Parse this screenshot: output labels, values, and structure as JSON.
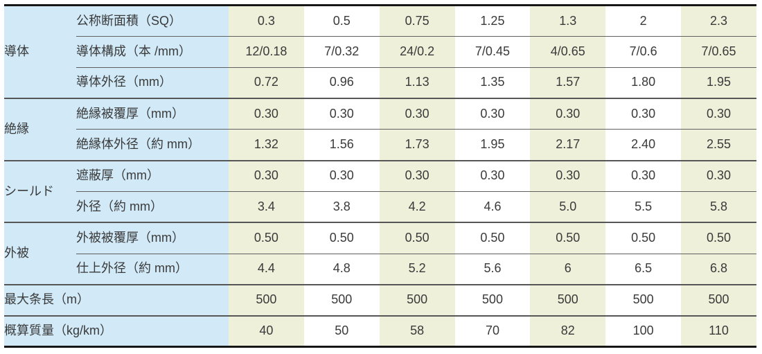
{
  "table": {
    "title": "cable-specification-table",
    "colors": {
      "label_bg": "#d2eaf8",
      "stripe_bg": "#eef0da",
      "plain_bg": "#ffffff",
      "rule": "#5f5f5f",
      "frame": "#161616",
      "text": "#3a3a3a"
    },
    "groups": [
      {
        "category": "導体",
        "rows": [
          {
            "label": "公称断面積（SQ）",
            "values": [
              "0.3",
              "0.5",
              "0.75",
              "1.25",
              "1.3",
              "2",
              "2.3"
            ]
          },
          {
            "label": "導体構成（本 /mm）",
            "values": [
              "12/0.18",
              "7/0.32",
              "24/0.2",
              "7/0.45",
              "4/0.65",
              "7/0.6",
              "7/0.65"
            ]
          },
          {
            "label": "導体外径（mm）",
            "values": [
              "0.72",
              "0.96",
              "1.13",
              "1.35",
              "1.57",
              "1.80",
              "1.95"
            ]
          }
        ]
      },
      {
        "category": "絶縁",
        "rows": [
          {
            "label": "絶縁被覆厚（mm）",
            "values": [
              "0.30",
              "0.30",
              "0.30",
              "0.30",
              "0.30",
              "0.30",
              "0.30"
            ]
          },
          {
            "label": "絶縁体外径（約 mm）",
            "values": [
              "1.32",
              "1.56",
              "1.73",
              "1.95",
              "2.17",
              "2.40",
              "2.55"
            ]
          }
        ]
      },
      {
        "category": "シールド",
        "rows": [
          {
            "label": "遮蔽厚（mm）",
            "values": [
              "0.30",
              "0.30",
              "0.30",
              "0.30",
              "0.30",
              "0.30",
              "0.30"
            ]
          },
          {
            "label": "外径（約 mm）",
            "values": [
              "3.4",
              "3.8",
              "4.2",
              "4.6",
              "5.0",
              "5.5",
              "5.8"
            ]
          }
        ]
      },
      {
        "category": "外被",
        "rows": [
          {
            "label": "外被被覆厚（mm）",
            "values": [
              "0.50",
              "0.50",
              "0.50",
              "0.50",
              "0.50",
              "0.50",
              "0.50"
            ]
          },
          {
            "label": "仕上外径（約 mm）",
            "values": [
              "4.4",
              "4.8",
              "5.2",
              "5.6",
              "6",
              "6.5",
              "6.8"
            ]
          }
        ]
      }
    ],
    "summary_rows": [
      {
        "label": "最大条長（m）",
        "values": [
          "500",
          "500",
          "500",
          "500",
          "500",
          "500",
          "500"
        ]
      },
      {
        "label": "概算質量（kg/km）",
        "values": [
          "40",
          "50",
          "58",
          "70",
          "82",
          "100",
          "110"
        ]
      }
    ]
  }
}
